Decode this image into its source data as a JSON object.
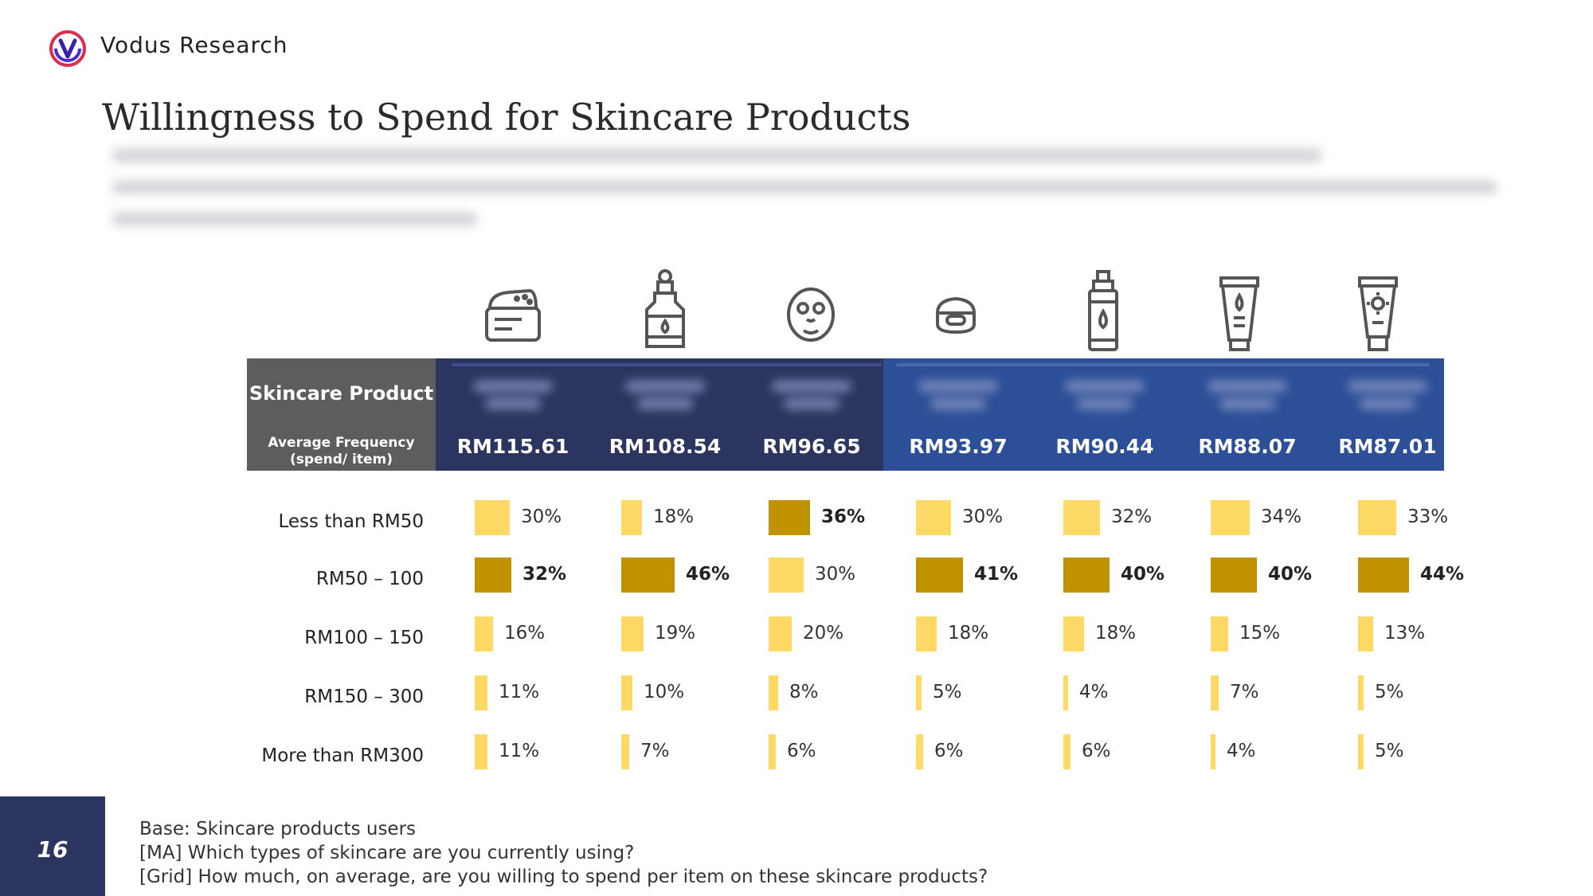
{
  "header": {
    "brand": "Vodus Research"
  },
  "title": "Willingness to Spend for Skincare Products",
  "table": {
    "product_label": "Skincare Product",
    "freq_label_1": "Average Frequency",
    "freq_label_2": "(spend/ item)",
    "row_labels": [
      "Less than RM50",
      "RM50 – 100",
      "RM100 – 150",
      "RM150 – 300",
      "More than RM300"
    ],
    "icons": [
      "cream-jar-icon",
      "serum-bottle-icon",
      "face-mask-icon",
      "moisturizer-jar-icon",
      "toner-bottle-icon",
      "cleanser-tube-icon",
      "sunscreen-tube-icon"
    ]
  },
  "colors": {
    "highlight": "#c19200",
    "normal": "#ffd966",
    "dark_header": "#2c355f",
    "blue_header": "#2c4f97",
    "left_header": "#5d5d5d"
  },
  "chart_data": {
    "type": "bar",
    "categories": [
      "Less than RM50",
      "RM50 – 100",
      "RM100 – 150",
      "RM150 – 300",
      "More than RM300"
    ],
    "products": [
      {
        "price": "RM115.61",
        "values": [
          30,
          32,
          16,
          11,
          11
        ],
        "labels": [
          "30%",
          "32%",
          "16%",
          "11%",
          "11%"
        ],
        "highlight": 1
      },
      {
        "price": "RM108.54",
        "values": [
          18,
          46,
          19,
          10,
          7
        ],
        "labels": [
          "18%",
          "46%",
          "19%",
          "10%",
          "7%"
        ],
        "highlight": 1
      },
      {
        "price": "RM96.65",
        "values": [
          36,
          30,
          20,
          8,
          6
        ],
        "labels": [
          "36%",
          "30%",
          "20%",
          "8%",
          "6%"
        ],
        "highlight": 0
      },
      {
        "price": "RM93.97",
        "values": [
          30,
          41,
          18,
          5,
          6
        ],
        "labels": [
          "30%",
          "41%",
          "18%",
          "5%",
          "6%"
        ],
        "highlight": 1
      },
      {
        "price": "RM90.44",
        "values": [
          32,
          40,
          18,
          4,
          6
        ],
        "labels": [
          "32%",
          "40%",
          "18%",
          "4%",
          "6%"
        ],
        "highlight": 1
      },
      {
        "price": "RM88.07",
        "values": [
          34,
          40,
          15,
          7,
          4
        ],
        "labels": [
          "34%",
          "40%",
          "15%",
          "7%",
          "4%"
        ],
        "highlight": 1
      },
      {
        "price": "RM87.01",
        "values": [
          33,
          44,
          13,
          5,
          5
        ],
        "labels": [
          "33%",
          "44%",
          "13%",
          "5%",
          "5%"
        ],
        "highlight": 1
      }
    ]
  },
  "footer": {
    "page_number": "16",
    "base": "Base: Skincare products users",
    "q1": "[MA] Which types of skincare are you currently using?",
    "q2": "[Grid] How much, on average, are you willing to spend per item on these skincare products?"
  }
}
